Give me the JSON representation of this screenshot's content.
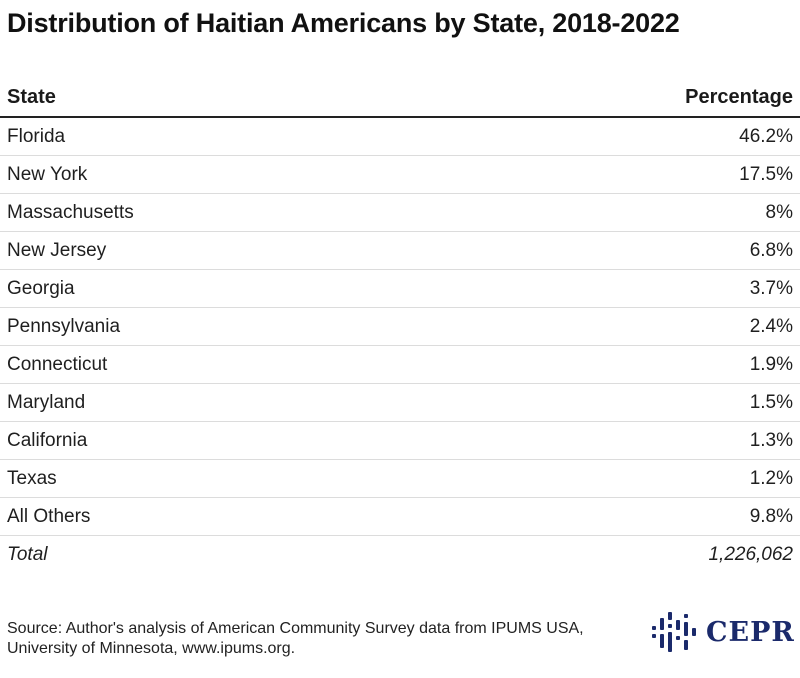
{
  "title": "Distribution of Haitian Americans by State, 2018-2022",
  "chart_data": {
    "type": "table",
    "columns": [
      "State",
      "Percentage"
    ],
    "rows": [
      {
        "state": "Florida",
        "percentage": "46.2%"
      },
      {
        "state": "New York",
        "percentage": "17.5%"
      },
      {
        "state": "Massachusetts",
        "percentage": "8%"
      },
      {
        "state": "New Jersey",
        "percentage": "6.8%"
      },
      {
        "state": "Georgia",
        "percentage": "3.7%"
      },
      {
        "state": "Pennsylvania",
        "percentage": "2.4%"
      },
      {
        "state": "Connecticut",
        "percentage": "1.9%"
      },
      {
        "state": "Maryland",
        "percentage": "1.5%"
      },
      {
        "state": "California",
        "percentage": "1.3%"
      },
      {
        "state": "Texas",
        "percentage": "1.2%"
      },
      {
        "state": "All Others",
        "percentage": "9.8%"
      }
    ],
    "total": {
      "label": "Total",
      "value": "1,226,062"
    }
  },
  "source": "Source: Author's analysis of American Community Survey data from IPUMS USA, University of Minnesota, www.ipums.org.",
  "logo": {
    "text": "CEPR",
    "color": "#1b2a6b"
  }
}
